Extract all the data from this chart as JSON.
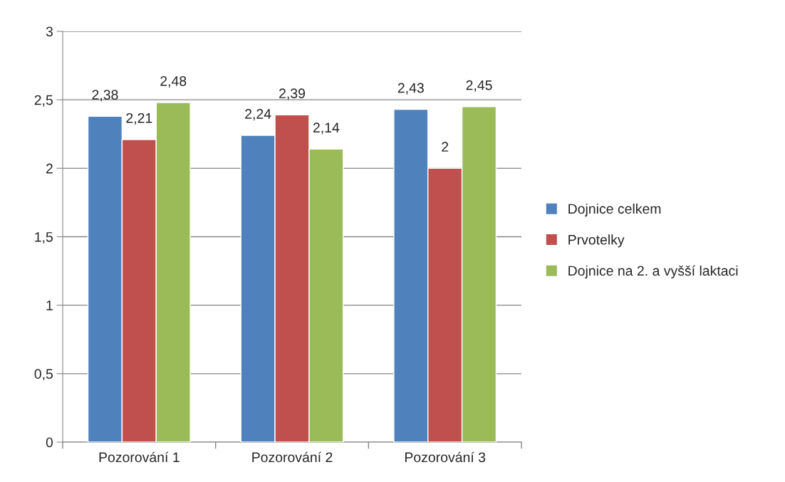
{
  "chart_data": {
    "type": "bar",
    "categories": [
      "Pozorování 1",
      "Pozorování 2",
      "Pozorování 3"
    ],
    "series": [
      {
        "name": "Dojnice celkem",
        "color": "#4f81bd",
        "values": [
          2.38,
          2.24,
          2.43
        ],
        "value_labels": [
          "2,38",
          "2,24",
          "2,43"
        ]
      },
      {
        "name": "Prvotelky",
        "color": "#c0504d",
        "values": [
          2.21,
          2.39,
          2.0
        ],
        "value_labels": [
          "2,21",
          "2,39",
          "2"
        ]
      },
      {
        "name": "Dojnice na 2. a vyšší laktaci",
        "color": "#9bbb59",
        "values": [
          2.48,
          2.14,
          2.45
        ],
        "value_labels": [
          "2,48",
          "2,14",
          "2,45"
        ]
      }
    ],
    "ylim": [
      0,
      3
    ],
    "yticks": [
      0,
      {
        "value": 0.5,
        "label": "0,5"
      },
      1,
      {
        "value": 1.5,
        "label": "1,5"
      },
      2,
      {
        "value": 2.5,
        "label": "2,5"
      },
      3
    ],
    "grid": "y",
    "legend": "right"
  }
}
